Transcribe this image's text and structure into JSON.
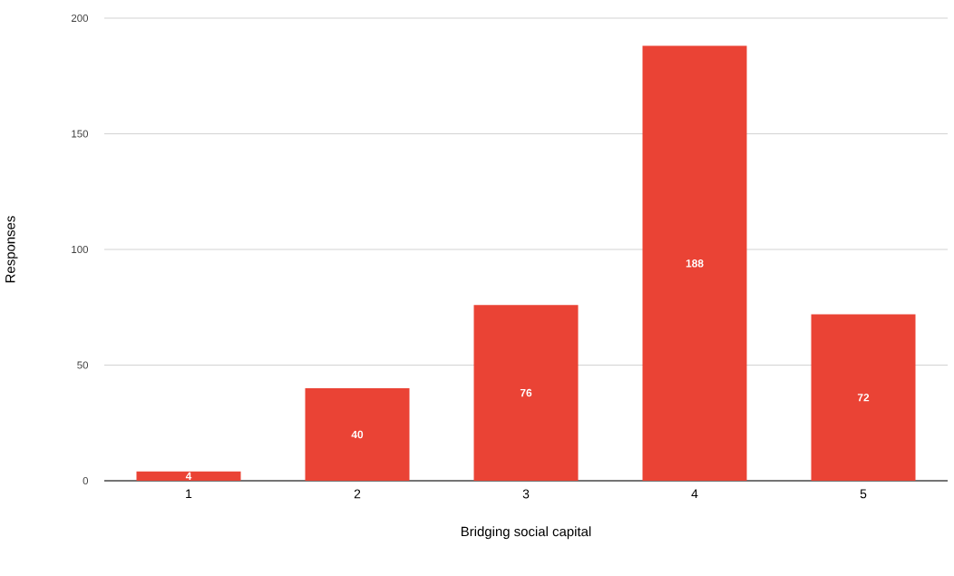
{
  "chart_data": {
    "type": "bar",
    "xlabel": "Bridging social capital",
    "ylabel": "Responses",
    "categories": [
      "1",
      "2",
      "3",
      "4",
      "5"
    ],
    "values": [
      4,
      40,
      76,
      188,
      72
    ],
    "color": "#ea4335",
    "ylim": [
      0,
      200
    ],
    "yticks": [
      0,
      50,
      100,
      150,
      200
    ],
    "grid": "y",
    "data_labels": true
  }
}
